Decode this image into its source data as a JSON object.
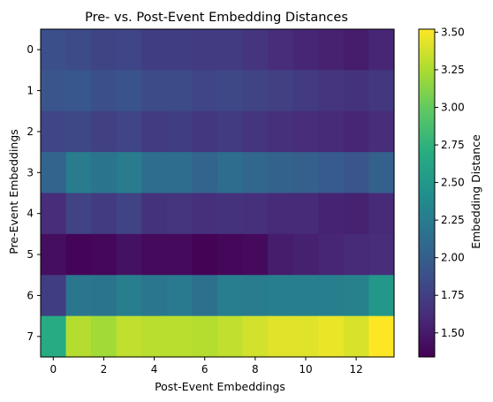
{
  "chart_data": {
    "type": "heatmap",
    "title": "Pre- vs. Post-Event Embedding Distances",
    "xlabel": "Post-Event Embeddings",
    "ylabel": "Pre-Event Embeddings",
    "x_ticks": [
      0,
      2,
      4,
      6,
      8,
      10,
      12
    ],
    "y_ticks": [
      0,
      1,
      2,
      3,
      4,
      5,
      6,
      7
    ],
    "colorbar": {
      "label": "Embedding Distance",
      "range": [
        1.34,
        3.52
      ],
      "ticks": [
        1.5,
        1.75,
        2.0,
        2.25,
        2.5,
        2.75,
        3.0,
        3.25,
        3.5
      ],
      "tick_labels": [
        "1.50",
        "1.75",
        "2.00",
        "2.25",
        "2.50",
        "2.75",
        "3.00",
        "3.25",
        "3.50"
      ]
    },
    "colormap": "viridis",
    "values": [
      [
        1.88,
        1.85,
        1.79,
        1.8,
        1.74,
        1.74,
        1.72,
        1.72,
        1.68,
        1.62,
        1.58,
        1.55,
        1.52,
        1.58
      ],
      [
        1.92,
        1.94,
        1.88,
        1.9,
        1.84,
        1.84,
        1.8,
        1.82,
        1.78,
        1.76,
        1.72,
        1.68,
        1.66,
        1.7
      ],
      [
        1.8,
        1.82,
        1.76,
        1.8,
        1.72,
        1.74,
        1.7,
        1.72,
        1.68,
        1.64,
        1.62,
        1.6,
        1.58,
        1.62
      ],
      [
        2.05,
        2.25,
        2.18,
        2.25,
        2.12,
        2.12,
        2.05,
        2.12,
        2.06,
        2.03,
        2.0,
        1.97,
        1.92,
        2.02
      ],
      [
        1.62,
        1.78,
        1.72,
        1.78,
        1.66,
        1.68,
        1.64,
        1.66,
        1.64,
        1.6,
        1.6,
        1.56,
        1.55,
        1.6
      ],
      [
        1.42,
        1.36,
        1.38,
        1.45,
        1.4,
        1.4,
        1.35,
        1.38,
        1.4,
        1.52,
        1.54,
        1.58,
        1.6,
        1.62
      ],
      [
        1.74,
        2.2,
        2.18,
        2.28,
        2.2,
        2.24,
        2.15,
        2.26,
        2.25,
        2.28,
        2.28,
        2.28,
        2.3,
        2.5
      ],
      [
        2.68,
        3.28,
        3.22,
        3.32,
        3.3,
        3.3,
        3.28,
        3.32,
        3.38,
        3.42,
        3.42,
        3.46,
        3.4,
        3.52
      ]
    ]
  }
}
